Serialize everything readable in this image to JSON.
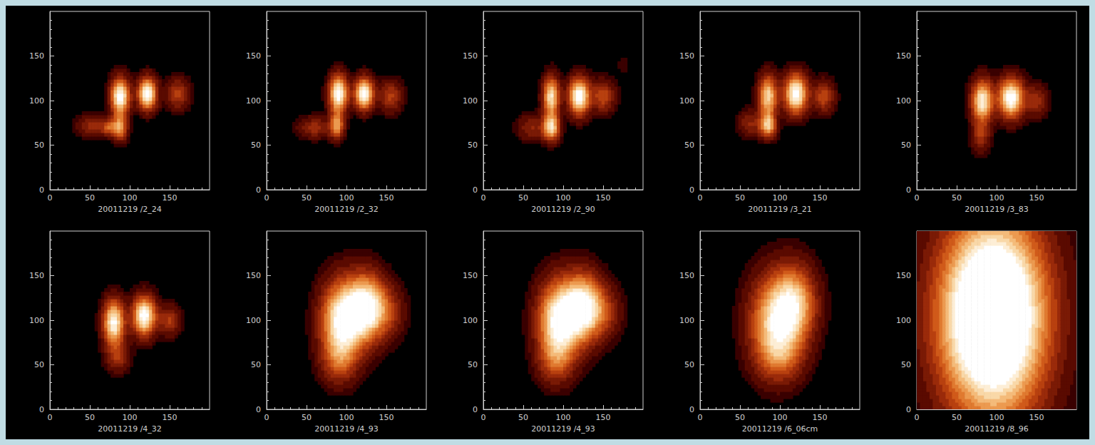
{
  "chart_data": [
    {
      "type": "heatmap",
      "xlabel": "20011219 /2_24",
      "xlim": [
        0,
        200
      ],
      "ylim": [
        0,
        200
      ],
      "xticks": [
        0,
        50,
        100,
        150
      ],
      "yticks": [
        0,
        50,
        100,
        150
      ],
      "sources": [
        {
          "x": 88,
          "y": 105,
          "sx": 8,
          "sy": 14,
          "peak": 1.0
        },
        {
          "x": 88,
          "y": 70,
          "sx": 6,
          "sy": 10,
          "peak": 0.6
        },
        {
          "x": 122,
          "y": 108,
          "sx": 8,
          "sy": 12,
          "peak": 1.0
        },
        {
          "x": 160,
          "y": 108,
          "sx": 10,
          "sy": 12,
          "peak": 0.35
        },
        {
          "x": 55,
          "y": 72,
          "sx": 14,
          "sy": 8,
          "peak": 0.3
        },
        {
          "x": 75,
          "y": 70,
          "sx": 6,
          "sy": 6,
          "peak": 0.35
        }
      ]
    },
    {
      "type": "heatmap",
      "xlabel": "20011219 /2_32",
      "xlim": [
        0,
        200
      ],
      "ylim": [
        0,
        200
      ],
      "xticks": [
        0,
        50,
        100,
        150
      ],
      "yticks": [
        0,
        50,
        100,
        150
      ],
      "sources": [
        {
          "x": 90,
          "y": 108,
          "sx": 8,
          "sy": 14,
          "peak": 1.0
        },
        {
          "x": 88,
          "y": 72,
          "sx": 6,
          "sy": 10,
          "peak": 0.6
        },
        {
          "x": 122,
          "y": 108,
          "sx": 8,
          "sy": 12,
          "peak": 1.0
        },
        {
          "x": 155,
          "y": 105,
          "sx": 10,
          "sy": 12,
          "peak": 0.35
        },
        {
          "x": 60,
          "y": 70,
          "sx": 14,
          "sy": 8,
          "peak": 0.3
        }
      ]
    },
    {
      "type": "heatmap",
      "xlabel": "20011219 /2_90",
      "xlim": [
        0,
        200
      ],
      "ylim": [
        0,
        200
      ],
      "xticks": [
        0,
        50,
        100,
        150
      ],
      "yticks": [
        0,
        50,
        100,
        150
      ],
      "sources": [
        {
          "x": 85,
          "y": 105,
          "sx": 7,
          "sy": 15,
          "peak": 0.85
        },
        {
          "x": 85,
          "y": 70,
          "sx": 7,
          "sy": 10,
          "peak": 0.8
        },
        {
          "x": 120,
          "y": 105,
          "sx": 9,
          "sy": 14,
          "peak": 1.0
        },
        {
          "x": 150,
          "y": 105,
          "sx": 10,
          "sy": 12,
          "peak": 0.4
        },
        {
          "x": 60,
          "y": 70,
          "sx": 12,
          "sy": 10,
          "peak": 0.25
        },
        {
          "x": 175,
          "y": 140,
          "sx": 5,
          "sy": 8,
          "peak": 0.08
        }
      ]
    },
    {
      "type": "heatmap",
      "xlabel": "20011219 /3_21",
      "xlim": [
        0,
        200
      ],
      "ylim": [
        0,
        200
      ],
      "xticks": [
        0,
        50,
        100,
        150
      ],
      "yticks": [
        0,
        50,
        100,
        150
      ],
      "sources": [
        {
          "x": 85,
          "y": 105,
          "sx": 8,
          "sy": 16,
          "peak": 0.8
        },
        {
          "x": 85,
          "y": 72,
          "sx": 7,
          "sy": 9,
          "peak": 0.7
        },
        {
          "x": 120,
          "y": 108,
          "sx": 10,
          "sy": 15,
          "peak": 1.0
        },
        {
          "x": 155,
          "y": 105,
          "sx": 9,
          "sy": 12,
          "peak": 0.4
        },
        {
          "x": 62,
          "y": 75,
          "sx": 10,
          "sy": 10,
          "peak": 0.25
        }
      ]
    },
    {
      "type": "heatmap",
      "xlabel": "20011219 /3_83",
      "xlim": [
        0,
        200
      ],
      "ylim": [
        0,
        200
      ],
      "xticks": [
        0,
        50,
        100,
        150
      ],
      "yticks": [
        0,
        50,
        100,
        150
      ],
      "sources": [
        {
          "x": 82,
          "y": 100,
          "sx": 9,
          "sy": 16,
          "peak": 0.9
        },
        {
          "x": 118,
          "y": 103,
          "sx": 11,
          "sy": 15,
          "peak": 1.0
        },
        {
          "x": 150,
          "y": 100,
          "sx": 9,
          "sy": 12,
          "peak": 0.3
        },
        {
          "x": 80,
          "y": 60,
          "sx": 8,
          "sy": 12,
          "peak": 0.3
        }
      ]
    },
    {
      "type": "heatmap",
      "xlabel": "20011219 /4_32",
      "xlim": [
        0,
        200
      ],
      "ylim": [
        0,
        200
      ],
      "xticks": [
        0,
        50,
        100,
        150
      ],
      "yticks": [
        0,
        50,
        100,
        150
      ],
      "sources": [
        {
          "x": 80,
          "y": 98,
          "sx": 9,
          "sy": 17,
          "peak": 0.95
        },
        {
          "x": 118,
          "y": 105,
          "sx": 10,
          "sy": 15,
          "peak": 1.0
        },
        {
          "x": 150,
          "y": 100,
          "sx": 9,
          "sy": 11,
          "peak": 0.35
        },
        {
          "x": 85,
          "y": 60,
          "sx": 10,
          "sy": 12,
          "peak": 0.3
        }
      ]
    },
    {
      "type": "heatmap",
      "xlabel": "20011219 /4_93",
      "xlim": [
        0,
        200
      ],
      "ylim": [
        0,
        200
      ],
      "xticks": [
        0,
        50,
        100,
        150
      ],
      "yticks": [
        0,
        50,
        100,
        150
      ],
      "sources": [
        {
          "x": 95,
          "y": 100,
          "sx": 18,
          "sy": 30,
          "peak": 1.0
        },
        {
          "x": 125,
          "y": 115,
          "sx": 16,
          "sy": 25,
          "peak": 0.9
        },
        {
          "x": 150,
          "y": 110,
          "sx": 15,
          "sy": 20,
          "peak": 0.3
        },
        {
          "x": 90,
          "y": 55,
          "sx": 15,
          "sy": 18,
          "peak": 0.3
        }
      ]
    },
    {
      "type": "heatmap",
      "xlabel": "20011219 /4_93",
      "xlim": [
        0,
        200
      ],
      "ylim": [
        0,
        200
      ],
      "xticks": [
        0,
        50,
        100,
        150
      ],
      "yticks": [
        0,
        50,
        100,
        150
      ],
      "sources": [
        {
          "x": 95,
          "y": 100,
          "sx": 18,
          "sy": 30,
          "peak": 1.0
        },
        {
          "x": 125,
          "y": 115,
          "sx": 16,
          "sy": 25,
          "peak": 0.9
        },
        {
          "x": 150,
          "y": 110,
          "sx": 15,
          "sy": 20,
          "peak": 0.3
        },
        {
          "x": 90,
          "y": 55,
          "sx": 15,
          "sy": 18,
          "peak": 0.3
        }
      ]
    },
    {
      "type": "heatmap",
      "xlabel": "20011219 /6_06cm",
      "xlim": [
        0,
        200
      ],
      "ylim": [
        0,
        200
      ],
      "xticks": [
        0,
        50,
        100,
        150
      ],
      "yticks": [
        0,
        50,
        100,
        150
      ],
      "sources": [
        {
          "x": 95,
          "y": 100,
          "sx": 22,
          "sy": 35,
          "peak": 0.8
        },
        {
          "x": 120,
          "y": 120,
          "sx": 18,
          "sy": 28,
          "peak": 0.6
        },
        {
          "x": 100,
          "y": 60,
          "sx": 20,
          "sy": 20,
          "peak": 0.3
        }
      ]
    },
    {
      "type": "heatmap",
      "xlabel": "20011219 /8_96",
      "xlim": [
        0,
        200
      ],
      "ylim": [
        0,
        200
      ],
      "xticks": [
        0,
        50,
        100,
        150
      ],
      "yticks": [
        0,
        50,
        100,
        150
      ],
      "sources": [
        {
          "x": 95,
          "y": 105,
          "sx": 45,
          "sy": 75,
          "peak": 1.6
        }
      ]
    }
  ]
}
